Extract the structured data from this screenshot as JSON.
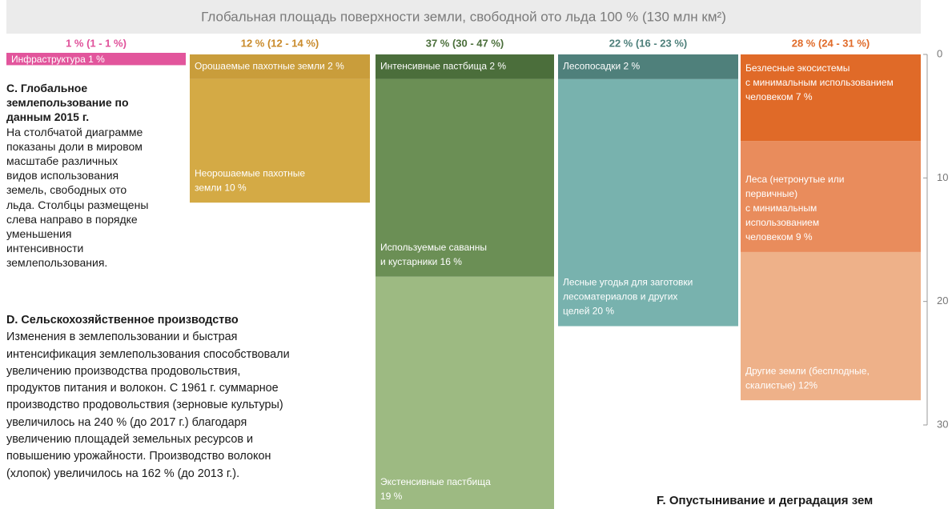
{
  "chart_data": {
    "type": "bar",
    "title": "Глобальная площадь поверхности земли, свободной ото льда 100 % (130 млн км²)",
    "ylim": [
      0,
      30
    ],
    "yticks": [
      0,
      10,
      20,
      30
    ],
    "columns": [
      {
        "header": "1 % (1 - 1 %)",
        "color": "#e0509a",
        "segments": [
          {
            "label": [
              "Инфраструктура 1 %"
            ],
            "value": 1,
            "color": "#e2559c"
          }
        ]
      },
      {
        "header": "12 % (12 - 14 %)",
        "color": "#c98a2a",
        "segments": [
          {
            "label": [
              "Орошаемые пахотные земли 2 %"
            ],
            "value": 2,
            "color": "#c99d3b"
          },
          {
            "label": [
              "Неорошаемые пахотные",
              "земли 10 %"
            ],
            "value": 10,
            "color": "#d4aa45"
          }
        ]
      },
      {
        "header": "37 % (30 - 47 %)",
        "color": "#4a6e3a",
        "segments": [
          {
            "label": [
              "Интенсивные пастбища 2 %"
            ],
            "value": 2,
            "color": "#4b6e3b"
          },
          {
            "label": [
              "Используемые саванны",
              "и кустарники 16 %"
            ],
            "value": 16,
            "color": "#6b8f55"
          },
          {
            "label": [
              "Экстенсивные пастбища",
              "19 %"
            ],
            "value": 19,
            "color": "#9dba82"
          }
        ]
      },
      {
        "header": "22 % (16 - 23 %)",
        "color": "#4d7f7a",
        "segments": [
          {
            "label": [
              "Лесопосадки 2 %"
            ],
            "value": 2,
            "color": "#4f807b"
          },
          {
            "label": [
              "Лесные угодья для заготовки",
              "лесоматериалов и других",
              "целей 20 %"
            ],
            "value": 20,
            "color": "#78b2ae"
          }
        ]
      },
      {
        "header": "28 % (24 - 31 %)",
        "color": "#e06a28",
        "segments": [
          {
            "label": [
              "Безлесные экосистемы",
              "с минимальным использованием",
              "человеком 7 %"
            ],
            "value": 7,
            "color": "#e06a28"
          },
          {
            "label": [
              "Леса (нетронутые или",
              "первичные)",
              "с минимальным",
              "использованием",
              "человеком 9 %"
            ],
            "value": 9,
            "color": "#e98c5c"
          },
          {
            "label": [
              "Другие земли (бесплодные,",
              "скалистые) 12%"
            ],
            "value": 12,
            "color": "#eeb189"
          }
        ]
      }
    ]
  },
  "text": {
    "section_c": {
      "title": [
        "C. Глобальное",
        "землепользование по",
        "данным 2015 г."
      ],
      "body": [
        "На столбчатой диаграмме",
        "показаны доли в мировом",
        "масштабе различных",
        "видов использования",
        "земель, свободных ото",
        "льда. Столбцы размещены",
        "слева направо в порядке",
        "уменьшения",
        "интенсивности",
        "землепользования."
      ]
    },
    "section_d": {
      "title": [
        "D. Сельскохозяйственное производство"
      ],
      "body": [
        "Изменения в землепользовании и быстрая",
        "интенсификация землепользования способствовали",
        "увеличению производства продовольствия,",
        "продуктов питания и волокон. С 1961 г. суммарное",
        "производство продовольствия (зерновые культуры)",
        "увеличилось на 240 % (до 2017 г.) благодаря",
        "увеличению площадей земельных ресурсов и",
        "повышению урожайности. Производство волокон",
        "(хлопок) увеличилось на 162 % (до 2013 г.)."
      ]
    },
    "section_f": {
      "title": [
        "F. Опустынивание и деградация зем"
      ]
    }
  }
}
